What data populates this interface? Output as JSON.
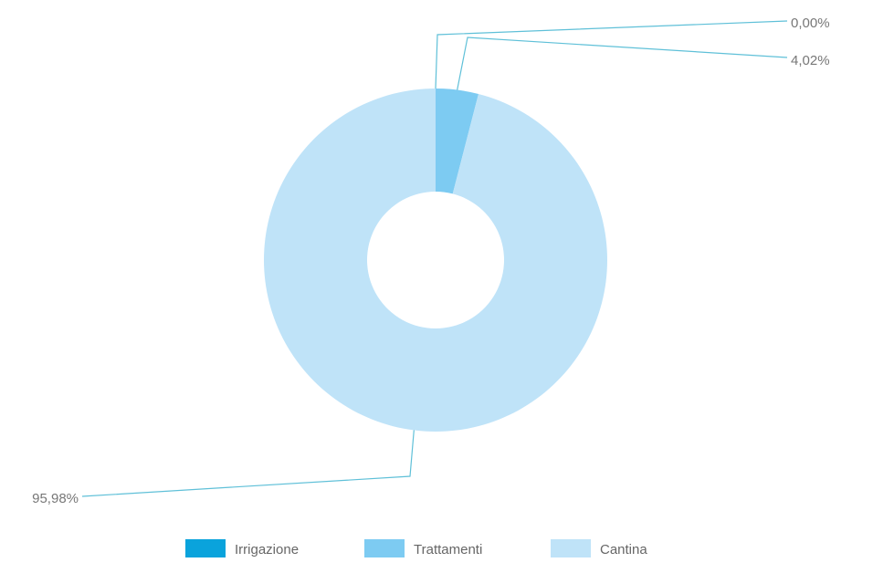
{
  "chart_data": {
    "type": "pie",
    "variant": "donut",
    "categories": [
      "Irrigazione",
      "Trattamenti",
      "Cantina"
    ],
    "values": [
      0.0,
      4.02,
      95.98
    ],
    "value_labels": [
      "0,00%",
      "4,02%",
      "95,98%"
    ],
    "unit": "%",
    "colors": [
      "#0aa3dc",
      "#7dcbf2",
      "#bfe3f8"
    ],
    "leader_line_color": "#5fc0d8",
    "legend": {
      "position": "bottom-center",
      "entries": [
        "Irrigazione",
        "Trattamenti",
        "Cantina"
      ]
    },
    "title": "",
    "start_angle": "12 o'clock",
    "direction": "clockwise"
  }
}
